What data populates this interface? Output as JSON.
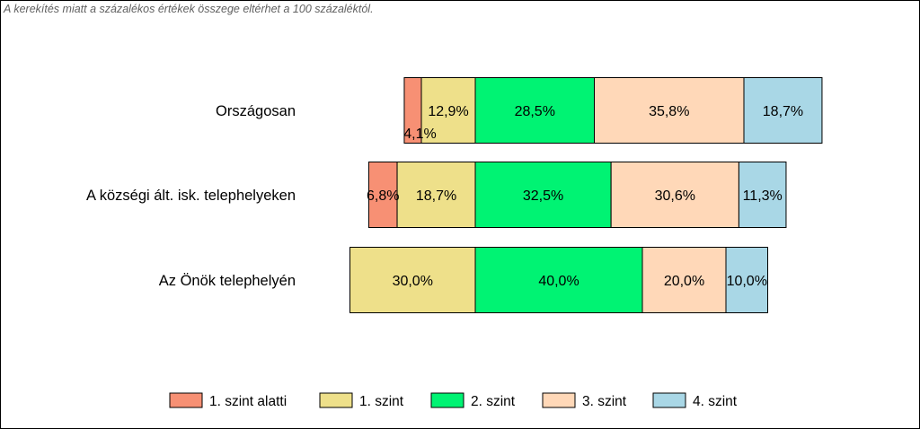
{
  "note": "A kerekítés miatt a  százalékos értékek összege eltérhet a 100 százaléktól.",
  "colors": {
    "1. szint alatti": "#F79074",
    "1. szint": "#EEE08A",
    "2. szint": "#00F373",
    "3. szint": "#FFD8B8",
    "4. szint": "#A9D7E6"
  },
  "chart_data": {
    "type": "bar",
    "orientation": "horizontal",
    "stacked": true,
    "diverging": true,
    "title": "",
    "xlabel": "",
    "ylabel": "",
    "grid": false,
    "legend_position": "bottom",
    "categories": [
      "Országosan",
      "A községi ált. isk. telephelyeken",
      "Az Önök telephelyén"
    ],
    "series": [
      {
        "name": "1. szint alatti",
        "values": [
          4.1,
          6.8,
          0.0
        ],
        "labels": [
          "4,1%",
          "6,8%",
          ""
        ]
      },
      {
        "name": "1. szint",
        "values": [
          12.9,
          18.7,
          30.0
        ],
        "labels": [
          "12,9%",
          "18,7%",
          "30,0%"
        ]
      },
      {
        "name": "2. szint",
        "values": [
          28.5,
          32.5,
          40.0
        ],
        "labels": [
          "28,5%",
          "32,5%",
          "40,0%"
        ]
      },
      {
        "name": "3. szint",
        "values": [
          35.8,
          30.6,
          20.0
        ],
        "labels": [
          "35,8%",
          "30,6%",
          "20,0%"
        ]
      },
      {
        "name": "4. szint",
        "values": [
          18.7,
          11.3,
          10.0
        ],
        "labels": [
          "18,7%",
          "11,3%",
          "10,0%"
        ]
      }
    ]
  }
}
